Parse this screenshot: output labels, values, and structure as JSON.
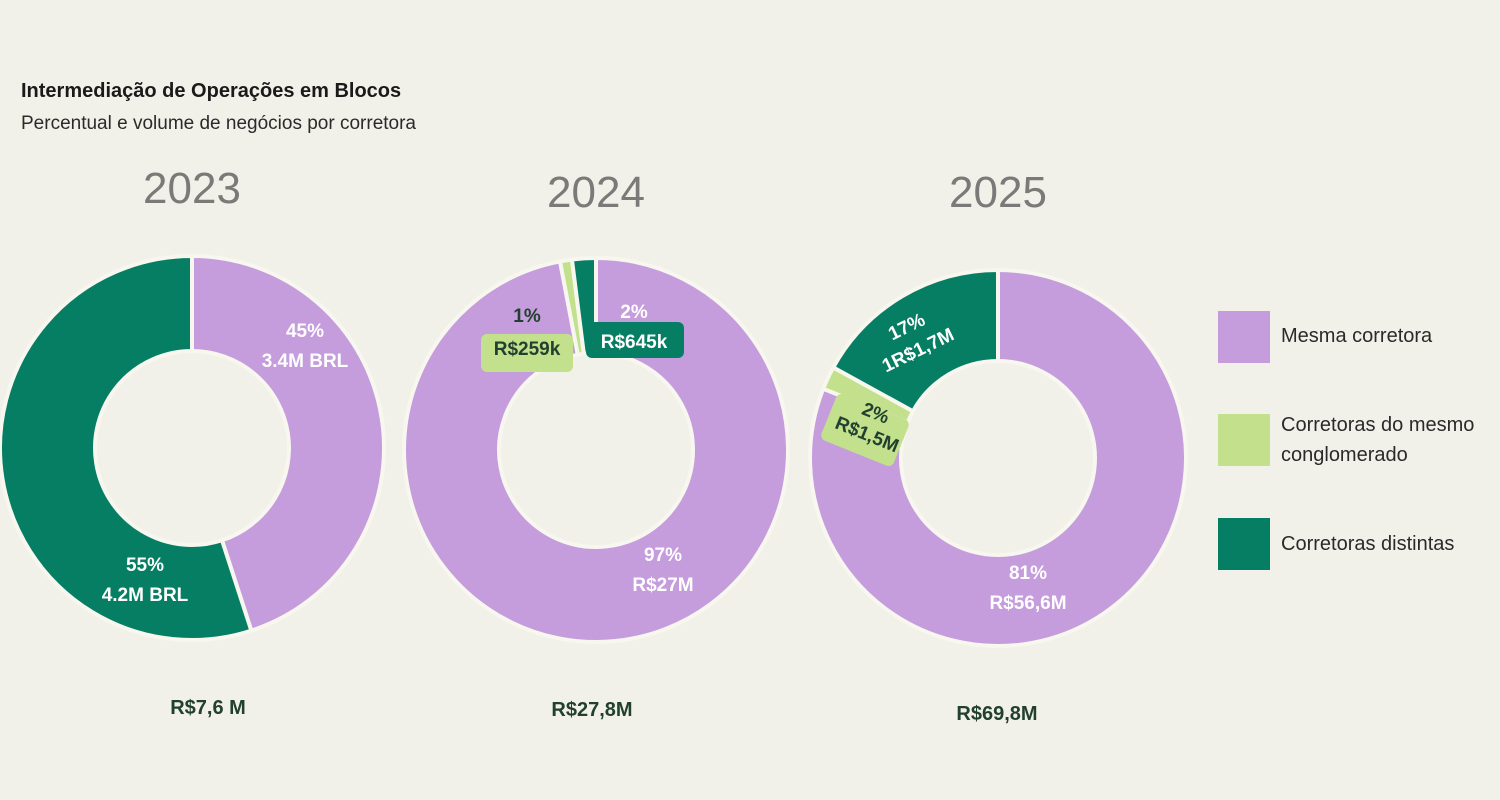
{
  "header": {
    "title": "Intermediação de Operações em Blocos",
    "subtitle": "Percentual e volume de negócios por corretora"
  },
  "colors": {
    "background": "#f2f1e9",
    "mesma_corretora": "#c59cdc",
    "mesmo_conglomerado": "#c3e08c",
    "distintas": "#067e63",
    "ring_stroke": "#f7f6ef",
    "dark_text": "#22402f"
  },
  "legend": [
    {
      "label": "Mesma corretora",
      "color": "#c59cdc"
    },
    {
      "label": "Corretoras do mesmo conglomerado",
      "color": "#c3e08c"
    },
    {
      "label": "Corretoras distintas",
      "color": "#067e63"
    }
  ],
  "chart_data": [
    {
      "type": "pie",
      "title": "2023",
      "total": "R$7,6 M",
      "slices": [
        {
          "series": "Mesma corretora",
          "percent": 45,
          "pct_label": "45%",
          "value_label": "3.4M BRL"
        },
        {
          "series": "Corretoras distintas",
          "percent": 55,
          "pct_label": "55%",
          "value_label": "4.2M BRL"
        }
      ]
    },
    {
      "type": "pie",
      "title": "2024",
      "total": "R$27,8M",
      "slices": [
        {
          "series": "Mesma corretora",
          "percent": 97,
          "pct_label": "97%",
          "value_label": "R$27M"
        },
        {
          "series": "Corretoras do mesmo conglomerado",
          "percent": 1,
          "pct_label": "1%",
          "value_label": "R$259k"
        },
        {
          "series": "Corretoras distintas",
          "percent": 2,
          "pct_label": "2%",
          "value_label": "R$645k"
        }
      ]
    },
    {
      "type": "pie",
      "title": "2025",
      "total": "R$69,8M",
      "slices": [
        {
          "series": "Mesma corretora",
          "percent": 81,
          "pct_label": "81%",
          "value_label": "R$56,6M"
        },
        {
          "series": "Corretoras do mesmo conglomerado",
          "percent": 2,
          "pct_label": "2%",
          "value_label": "R$1,5M"
        },
        {
          "series": "Corretoras distintas",
          "percent": 17,
          "pct_label": "17%",
          "value_label": "1R$1,7M"
        }
      ]
    }
  ]
}
